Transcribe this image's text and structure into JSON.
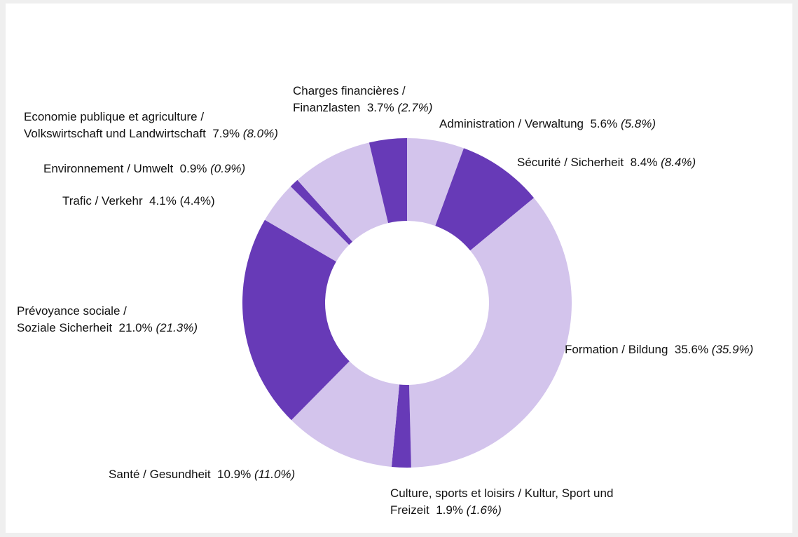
{
  "chart_data": {
    "type": "donut",
    "categories": [
      "Administration / Verwaltung",
      "Sécurité / Sicherheit",
      "Formation / Bildung",
      "Culture, sports et loisirs / Kultur, Sport und\nFreizeit",
      "Santé / Gesundheit",
      "Prévoyance sociale /\nSoziale Sicherheit",
      "Trafic / Verkehr",
      "Environnement / Umwelt",
      "Economie publique et agriculture /\nVolkswirtschaft und Landwirtschaft",
      "Charges financières /\nFinanzlasten"
    ],
    "values": [
      5.6,
      8.4,
      35.6,
      1.9,
      10.9,
      21.0,
      4.1,
      0.9,
      7.9,
      3.7
    ],
    "value_labels": [
      "5.6%",
      "8.4%",
      "35.6%",
      "1.9%",
      "10.9%",
      "21.0%",
      "4.1%",
      "0.9%",
      "7.9%",
      "3.7%"
    ],
    "prior_values": [
      5.8,
      8.4,
      35.9,
      1.6,
      11.0,
      21.3,
      4.4,
      0.9,
      8.0,
      2.7
    ],
    "prior_labels": [
      "(5.8%)",
      "(8.4%)",
      "(35.9%)",
      "(1.6%)",
      "(11.0%)",
      "(21.3%)",
      "(4.4%)",
      "(0.9%)",
      "(8.0%)",
      "(2.7%)"
    ],
    "prior_label_italic": [
      true,
      true,
      true,
      true,
      true,
      true,
      false,
      true,
      true,
      true
    ],
    "colors": [
      "#d3c4ec",
      "#673ab7",
      "#d3c4ec",
      "#673ab7",
      "#d3c4ec",
      "#673ab7",
      "#d3c4ec",
      "#673ab7",
      "#d3c4ec",
      "#673ab7"
    ]
  }
}
